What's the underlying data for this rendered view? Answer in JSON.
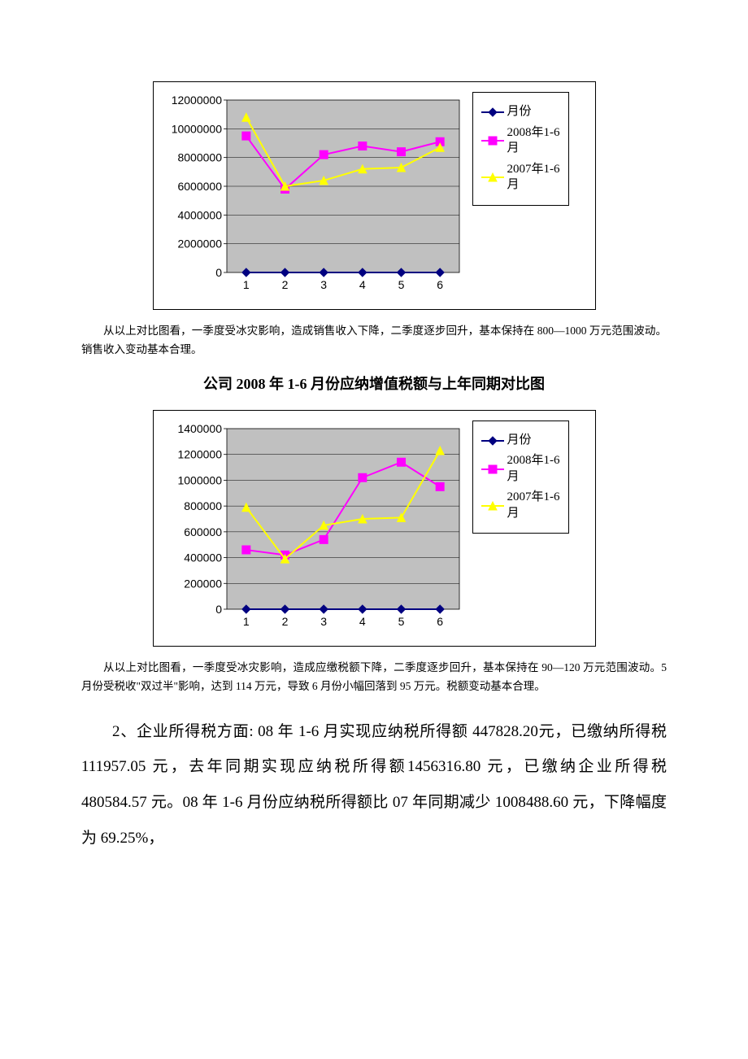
{
  "chart1": {
    "type": "line",
    "plot_bg": "#c0c0c0",
    "grid_color": "#000000",
    "axis_color": "#000000",
    "font_size_axis": 14,
    "x_categories": [
      "1",
      "2",
      "3",
      "4",
      "5",
      "6"
    ],
    "y_min": 0,
    "y_max": 12000000,
    "y_step": 2000000,
    "y_labels": [
      "0",
      "2000000",
      "4000000",
      "6000000",
      "8000000",
      "10000000",
      "12000000"
    ],
    "series": [
      {
        "name": "月份",
        "color": "#000080",
        "marker": "diamond",
        "values": [
          0,
          0,
          0,
          0,
          0,
          0
        ]
      },
      {
        "name": "2008年1-6月",
        "color": "#ff00ff",
        "marker": "square",
        "values": [
          9500000,
          5800000,
          8200000,
          8800000,
          8400000,
          9100000
        ]
      },
      {
        "name": "2007年1-6月",
        "color": "#ffff00",
        "marker": "triangle",
        "values": [
          10800000,
          6000000,
          6400000,
          7200000,
          7300000,
          8700000
        ]
      }
    ],
    "legend": {
      "items": [
        {
          "label": "月份",
          "series_idx": 0
        },
        {
          "label_line1": "2008年1-6",
          "label_line2": "月",
          "series_idx": 1
        },
        {
          "label_line1": "2007年1-6",
          "label_line2": "月",
          "series_idx": 2
        }
      ]
    }
  },
  "para1": "从以上对比图看，一季度受冰灾影响，造成销售收入下降，二季度逐步回升，基本保持在 800—1000 万元范围波动。销售收入变动基本合理。",
  "heading": "公司 2008 年 1-6 月份应纳增值税额与上年同期对比图",
  "chart2": {
    "type": "line",
    "plot_bg": "#c0c0c0",
    "grid_color": "#000000",
    "axis_color": "#000000",
    "font_size_axis": 14,
    "x_categories": [
      "1",
      "2",
      "3",
      "4",
      "5",
      "6"
    ],
    "y_min": 0,
    "y_max": 1400000,
    "y_step": 200000,
    "y_labels": [
      "0",
      "200000",
      "400000",
      "600000",
      "800000",
      "1000000",
      "1200000",
      "1400000"
    ],
    "series": [
      {
        "name": "月份",
        "color": "#000080",
        "marker": "diamond",
        "values": [
          0,
          0,
          0,
          0,
          0,
          0
        ]
      },
      {
        "name": "2008年1-6月",
        "color": "#ff00ff",
        "marker": "square",
        "values": [
          460000,
          420000,
          540000,
          1020000,
          1140000,
          950000
        ]
      },
      {
        "name": "2007年1-6月",
        "color": "#ffff00",
        "marker": "triangle",
        "values": [
          790000,
          390000,
          650000,
          700000,
          710000,
          1230000
        ]
      }
    ],
    "legend": {
      "items": [
        {
          "label": "月份",
          "series_idx": 0
        },
        {
          "label_line1": "2008年1-6",
          "label_line2": "月",
          "series_idx": 1
        },
        {
          "label_line1": "2007年1-6",
          "label_line2": "月",
          "series_idx": 2
        }
      ]
    }
  },
  "para2": "从以上对比图看，一季度受冰灾影响，造成应缴税额下降，二季度逐步回升，基本保持在 90—120 万元范围波动。5 月份受税收\"双过半\"影响，达到 114 万元，导致 6 月份小幅回落到 95 万元。税额变动基本合理。",
  "body": "2、企业所得税方面: 08 年 1-6 月实现应纳税所得额 447828.20元，已缴纳所得税 111957.05 元，去年同期实现应纳税所得额1456316.80 元，已缴纳企业所得税 480584.57 元。08 年 1-6 月份应纳税所得额比 07 年同期减少 1008488.60 元，下降幅度为 69.25%，"
}
